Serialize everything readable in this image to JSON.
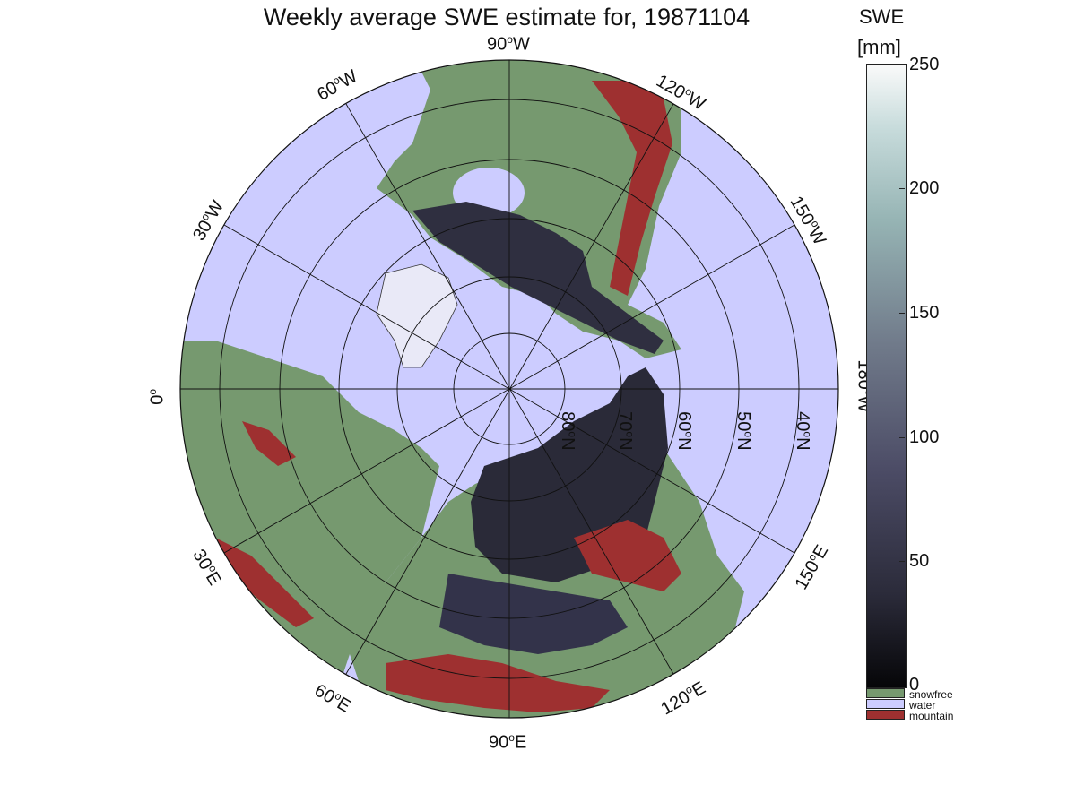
{
  "title": "Weekly average SWE estimate for, 19871104",
  "colorbar": {
    "title": "SWE",
    "unit": "[mm]",
    "ticks": [
      "250",
      "200",
      "150",
      "100",
      "50",
      "0"
    ],
    "range": [
      0,
      250
    ]
  },
  "categories": [
    {
      "label": "snowfree",
      "color": "#76996f"
    },
    {
      "label": "water",
      "color": "#ccccff"
    },
    {
      "label": "mountain",
      "color": "#9e3030"
    }
  ],
  "meridian_labels": {
    "m90w": "90",
    "m60w": "60",
    "m120w": "120",
    "m30w": "30",
    "m150w": "150",
    "m0": "0",
    "m180w": "180",
    "m30e": "30",
    "m150e": "150",
    "m60e": "60",
    "m120e": "120",
    "m90e": "90"
  },
  "parallel_labels": {
    "p80": "80",
    "p70": "70",
    "p60": "60",
    "p50": "50",
    "p40": "40"
  },
  "degree_symbol": "o",
  "dir": {
    "W": "W",
    "E": "E",
    "N": "N"
  },
  "colors": {
    "water": "#ccccff",
    "land": "#76996f",
    "mountain": "#9e3030",
    "snow_dark": "#2a2a38",
    "ice": "#e9e9f7"
  }
}
